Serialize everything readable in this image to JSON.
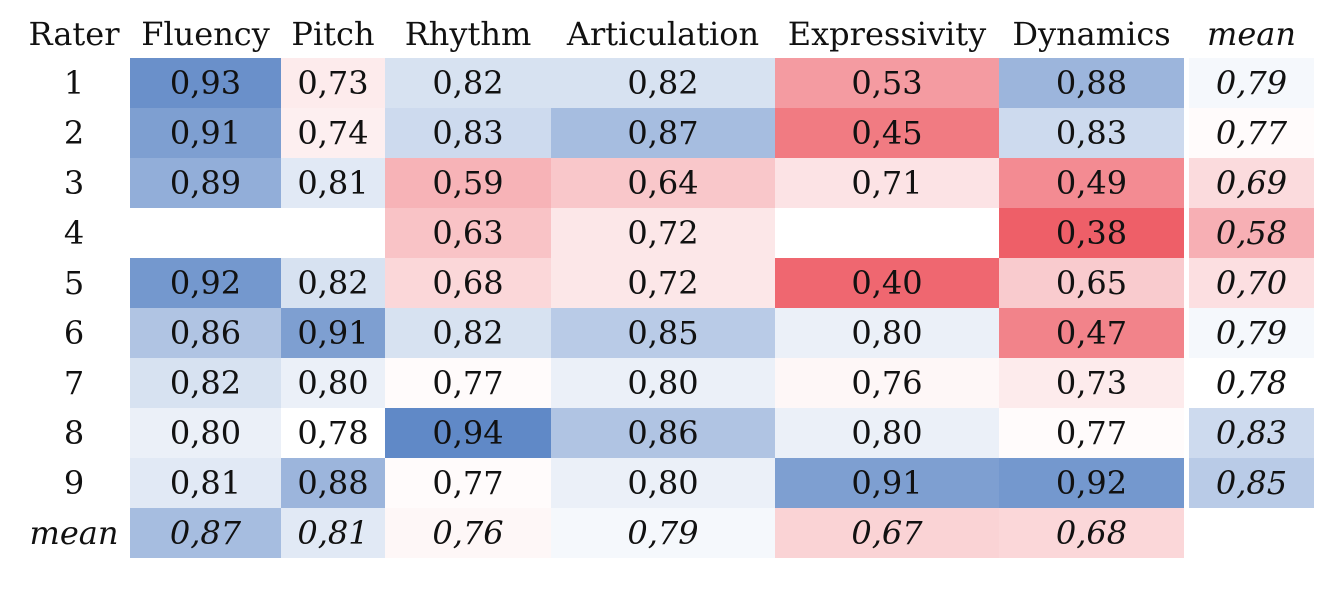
{
  "chart_data": {
    "type": "heatmap",
    "header": {
      "rater": "Rater",
      "columns": [
        "Fluency",
        "Pitch",
        "Rhythm",
        "Articulation",
        "Expressivity",
        "Dynamics"
      ],
      "mean": "mean"
    },
    "rows": [
      {
        "rater": "1",
        "values": [
          "0,93",
          "0,73",
          "0,82",
          "0,82",
          "0,53",
          "0,88"
        ],
        "mean": "0,79"
      },
      {
        "rater": "2",
        "values": [
          "0,91",
          "0,74",
          "0,83",
          "0,87",
          "0,45",
          "0,83"
        ],
        "mean": "0,77"
      },
      {
        "rater": "3",
        "values": [
          "0,89",
          "0,81",
          "0,59",
          "0,64",
          "0,71",
          "0,49"
        ],
        "mean": "0,69"
      },
      {
        "rater": "4",
        "values": [
          "",
          "",
          "0,63",
          "0,72",
          "",
          "0,38"
        ],
        "mean": "0,58"
      },
      {
        "rater": "5",
        "values": [
          "0,92",
          "0,82",
          "0,68",
          "0,72",
          "0,40",
          "0,65"
        ],
        "mean": "0,70"
      },
      {
        "rater": "6",
        "values": [
          "0,86",
          "0,91",
          "0,82",
          "0,85",
          "0,80",
          "0,47"
        ],
        "mean": "0,79"
      },
      {
        "rater": "7",
        "values": [
          "0,82",
          "0,80",
          "0,77",
          "0,80",
          "0,76",
          "0,73"
        ],
        "mean": "0,78"
      },
      {
        "rater": "8",
        "values": [
          "0,80",
          "0,78",
          "0,94",
          "0,86",
          "0,80",
          "0,77"
        ],
        "mean": "0,83"
      },
      {
        "rater": "9",
        "values": [
          "0,81",
          "0,88",
          "0,77",
          "0,80",
          "0,91",
          "0,92"
        ],
        "mean": "0,85"
      }
    ],
    "column_means": {
      "label": "mean",
      "values": [
        "0,87",
        "0,81",
        "0,76",
        "0,79",
        "0,67",
        "0,68"
      ]
    },
    "color_scale": {
      "low_color": "#ee5f68",
      "mid_color": "#ffffff",
      "high_color": "#6089c7",
      "low_value": 0.38,
      "mid_value": 0.78,
      "high_value": 0.94
    }
  }
}
